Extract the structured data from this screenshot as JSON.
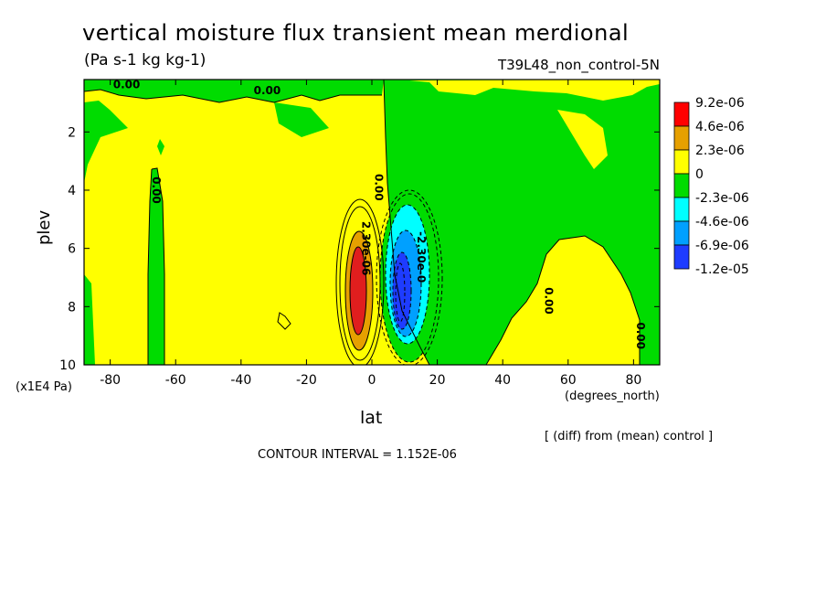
{
  "chart_data": {
    "type": "heatmap",
    "title": "vertical moisture flux transient mean merdional",
    "units": "(Pa s-1 kg kg-1)",
    "run_name": "T39L48_non_control-5N",
    "xlabel": "lat",
    "x_unit": "(degrees_north)",
    "ylabel": "plev",
    "y_unit": "(x1E4 Pa)",
    "xlim": [
      -88,
      88
    ],
    "ylim": [
      10,
      0.2
    ],
    "x_ticks": [
      -80,
      -60,
      -40,
      -20,
      0,
      20,
      40,
      60,
      80
    ],
    "y_ticks": [
      2,
      4,
      6,
      8,
      10
    ],
    "contour_interval": "CONTOUR INTERVAL = 1.152E-06",
    "note": "[ (diff) from (mean) control ]",
    "legend": {
      "labels": [
        "9.2e-06",
        "4.6e-06",
        "2.3e-06",
        "0",
        "-2.3e-06",
        "-4.6e-06",
        "-6.9e-06",
        "-1.2e-05"
      ],
      "colors": [
        "#ff0000",
        "#e6a000",
        "#ffff00",
        "#00dc00",
        "#00ffff",
        "#00a0ff",
        "#1e3cff"
      ]
    },
    "fill_colors": {
      "positive_low": "#ffff00",
      "positive_mid": "#e6a000",
      "positive_high": "#e01e1e",
      "negative_low": "#00dc00",
      "negative_mid": "#00ffff",
      "negative_high": "#00a0ff",
      "negative_max": "#1e3cff"
    },
    "contour_labels": [
      {
        "text": "0.00",
        "lat": -75,
        "plev": 0.5
      },
      {
        "text": "0.00",
        "lat": -32,
        "plev": 0.7
      },
      {
        "text": "0.00",
        "lat": -67,
        "plev": 4.0
      },
      {
        "text": "0.00",
        "lat": 1,
        "plev": 3.9
      },
      {
        "text": "2.30e-06",
        "lat": -3,
        "plev": 6.0
      },
      {
        "text": "-2.30e-0",
        "lat": 14,
        "plev": 6.3
      },
      {
        "text": "0.00",
        "lat": 53,
        "plev": 7.8
      },
      {
        "text": "0.00",
        "lat": 81,
        "plev": 9.0
      }
    ],
    "features": [
      {
        "sign": "positive",
        "lat_center": -4,
        "plev_center": 7.2,
        "peak": "9.2e-06"
      },
      {
        "sign": "negative",
        "lat_center": 10,
        "plev_center": 7.2,
        "peak": "-1.2e-05"
      }
    ]
  }
}
